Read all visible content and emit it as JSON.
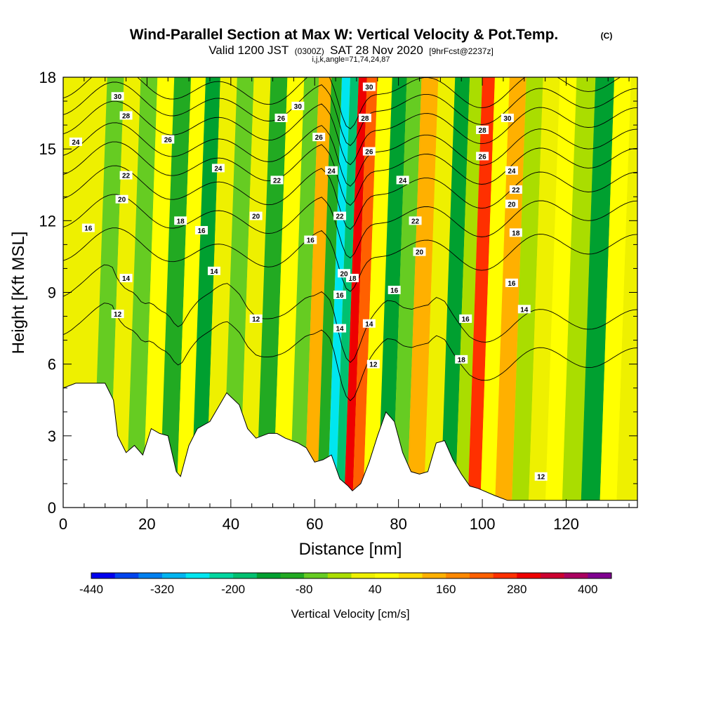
{
  "chart_data": {
    "type": "heatmap",
    "title": "Wind-Parallel Section at Max W: Vertical Velocity & Pot.Temp.",
    "title_mark": "(C)",
    "subtitle_prefix": "Valid 1200 JST",
    "subtitle_zulu": "(0300Z)",
    "subtitle_date": "SAT 28 Nov 2020",
    "subtitle_fcst": "[9hrFcst@2237z]",
    "subtitle2": "i,j,k,angle=71,74,24,87",
    "xlabel": "Distance [nm]",
    "ylabel": "Height [Kft MSL]",
    "xlim": [
      0,
      137
    ],
    "ylim": [
      0,
      18
    ],
    "xticks": [
      0,
      20,
      40,
      60,
      80,
      100,
      120
    ],
    "yticks": [
      0,
      3,
      6,
      9,
      12,
      15,
      18
    ],
    "colorbar": {
      "label": "Vertical Velocity [cm/s]",
      "range": [
        -440,
        440
      ],
      "tick_values": [
        -440,
        -320,
        -200,
        -80,
        40,
        160,
        280,
        400
      ],
      "colors": [
        "#0000ee",
        "#0044ee",
        "#0080f0",
        "#00b4f0",
        "#00e6f0",
        "#00d6a0",
        "#00c070",
        "#00a030",
        "#22aa22",
        "#66cc22",
        "#aadd00",
        "#eef000",
        "#ffff00",
        "#ffdd00",
        "#ffb000",
        "#ff8800",
        "#ff6000",
        "#ff3000",
        "#ee0000",
        "#cc0030",
        "#aa0060",
        "#800090"
      ]
    },
    "vertical_velocity_columns": [
      {
        "x": 2,
        "w": 0
      },
      {
        "x": 6,
        "w": 20
      },
      {
        "x": 10,
        "w": -80
      },
      {
        "x": 14,
        "w": 10
      },
      {
        "x": 18,
        "w": -60
      },
      {
        "x": 22,
        "w": 40
      },
      {
        "x": 26,
        "w": -100
      },
      {
        "x": 30,
        "w": 60
      },
      {
        "x": 33,
        "w": -140
      },
      {
        "x": 37,
        "w": 30
      },
      {
        "x": 41,
        "w": -80
      },
      {
        "x": 45,
        "w": 20
      },
      {
        "x": 49,
        "w": -90
      },
      {
        "x": 53,
        "w": 50
      },
      {
        "x": 57,
        "w": -60
      },
      {
        "x": 60,
        "w": 130
      },
      {
        "x": 63,
        "w": -120
      },
      {
        "x": 65,
        "w": -280
      },
      {
        "x": 67,
        "w": -200
      },
      {
        "x": 69,
        "w": 300
      },
      {
        "x": 71,
        "w": 220
      },
      {
        "x": 74,
        "w": 60
      },
      {
        "x": 78,
        "w": -160
      },
      {
        "x": 81,
        "w": -60
      },
      {
        "x": 85,
        "w": 120
      },
      {
        "x": 89,
        "w": 30
      },
      {
        "x": 93,
        "w": -140
      },
      {
        "x": 96,
        "w": -40
      },
      {
        "x": 99,
        "w": 260
      },
      {
        "x": 102,
        "w": 60
      },
      {
        "x": 106,
        "w": 150
      },
      {
        "x": 110,
        "w": -40
      },
      {
        "x": 114,
        "w": 20
      },
      {
        "x": 118,
        "w": 60
      },
      {
        "x": 122,
        "w": -30
      },
      {
        "x": 127,
        "w": -150
      },
      {
        "x": 131,
        "w": 40
      },
      {
        "x": 135,
        "w": 20
      }
    ],
    "terrain_kft": [
      [
        0,
        5.0
      ],
      [
        3,
        5.2
      ],
      [
        10,
        5.2
      ],
      [
        12,
        4.5
      ],
      [
        13,
        3.0
      ],
      [
        15,
        2.3
      ],
      [
        17,
        2.6
      ],
      [
        19,
        2.2
      ],
      [
        21,
        3.3
      ],
      [
        23,
        3.1
      ],
      [
        25,
        3.0
      ],
      [
        27,
        1.5
      ],
      [
        28,
        1.3
      ],
      [
        30,
        2.6
      ],
      [
        32,
        3.3
      ],
      [
        35,
        3.6
      ],
      [
        39,
        4.8
      ],
      [
        42,
        4.3
      ],
      [
        44,
        3.3
      ],
      [
        46,
        2.9
      ],
      [
        49,
        3.1
      ],
      [
        51,
        3.1
      ],
      [
        53,
        2.9
      ],
      [
        56,
        2.7
      ],
      [
        58,
        2.5
      ],
      [
        60,
        1.9
      ],
      [
        62,
        2.0
      ],
      [
        64,
        2.2
      ],
      [
        66,
        1.2
      ],
      [
        68,
        0.9
      ],
      [
        69,
        0.7
      ],
      [
        71,
        1.0
      ],
      [
        73,
        1.9
      ],
      [
        75,
        3.0
      ],
      [
        77,
        4.0
      ],
      [
        79,
        3.6
      ],
      [
        81,
        2.3
      ],
      [
        83,
        1.5
      ],
      [
        85,
        1.4
      ],
      [
        87,
        1.5
      ],
      [
        89,
        2.7
      ],
      [
        91,
        2.8
      ],
      [
        93,
        2.0
      ],
      [
        95,
        1.4
      ],
      [
        97,
        0.9
      ],
      [
        99,
        0.8
      ],
      [
        103,
        0.5
      ],
      [
        106,
        0.3
      ],
      [
        137,
        0.3
      ]
    ],
    "theta_contours": [
      {
        "value": 12,
        "base": 7.0,
        "labels": [
          [
            13,
            8.1
          ],
          [
            46,
            7.9
          ],
          [
            74,
            6.0
          ],
          [
            114,
            1.3
          ]
        ]
      },
      {
        "value": 14,
        "base": 8.6,
        "labels": [
          [
            15,
            9.6
          ],
          [
            36,
            9.9
          ],
          [
            66,
            7.5
          ],
          [
            73,
            7.7
          ],
          [
            110,
            8.3
          ]
        ]
      },
      {
        "value": 16,
        "base": 10.8,
        "labels": [
          [
            6,
            11.7
          ],
          [
            33,
            11.6
          ],
          [
            59,
            11.2
          ],
          [
            66,
            8.9
          ],
          [
            79,
            9.1
          ],
          [
            96,
            7.9
          ],
          [
            107,
            9.4
          ]
        ]
      },
      {
        "value": 18,
        "base": 12.2,
        "labels": [
          [
            28,
            12.0
          ],
          [
            69,
            9.6
          ],
          [
            95,
            6.2
          ],
          [
            108,
            11.5
          ]
        ]
      },
      {
        "value": 20,
        "base": 13.4,
        "labels": [
          [
            14,
            12.9
          ],
          [
            46,
            12.2
          ],
          [
            67,
            9.8
          ],
          [
            85,
            10.7
          ],
          [
            107,
            12.7
          ]
        ]
      },
      {
        "value": 22,
        "base": 14.4,
        "labels": [
          [
            15,
            13.9
          ],
          [
            51,
            13.7
          ],
          [
            66,
            12.2
          ],
          [
            84,
            12.0
          ],
          [
            108,
            13.3
          ]
        ]
      },
      {
        "value": 24,
        "base": 15.2,
        "labels": [
          [
            3,
            15.3
          ],
          [
            37,
            14.2
          ],
          [
            64,
            14.1
          ],
          [
            81,
            13.7
          ],
          [
            107,
            14.1
          ]
        ]
      },
      {
        "value": 26,
        "base": 16.1,
        "labels": [
          [
            25,
            15.4
          ],
          [
            52,
            16.3
          ],
          [
            61,
            15.5
          ],
          [
            73,
            14.9
          ],
          [
            100,
            14.7
          ]
        ]
      },
      {
        "value": 28,
        "base": 16.9,
        "labels": [
          [
            15,
            16.4
          ],
          [
            72,
            16.3
          ],
          [
            100,
            15.8
          ]
        ]
      },
      {
        "value": 30,
        "base": 17.6,
        "labels": [
          [
            13,
            17.2
          ],
          [
            56,
            16.8
          ],
          [
            73,
            17.6
          ],
          [
            106,
            16.3
          ]
        ]
      }
    ]
  }
}
